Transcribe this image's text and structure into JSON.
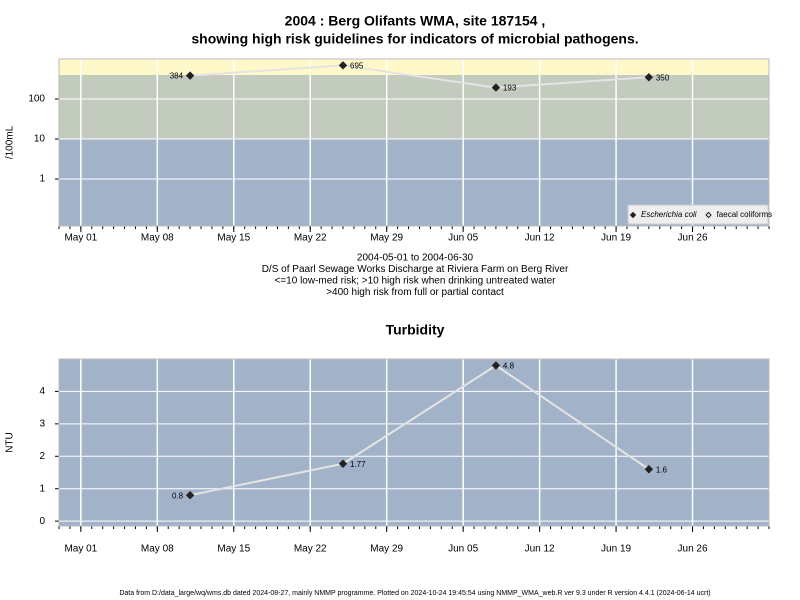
{
  "chart_data": [
    {
      "type": "line",
      "title": "2004 : Berg Olifants WMA, site 187154 ,",
      "subtitle": "showing high risk guidelines for indicators of microbial pathogens.",
      "y_label": "/100mL",
      "log_scale": true,
      "x": [
        "2004-05-11",
        "2004-05-25",
        "2004-06-08",
        "2004-06-22"
      ],
      "series": [
        {
          "name": "Escherichia coli",
          "color": "#222222",
          "marker": "filled",
          "values": [
            384,
            695,
            193,
            350
          ]
        },
        {
          "name": "faecal coliforms",
          "color": "#222222",
          "marker": "open",
          "values": [
            null,
            null,
            null,
            null
          ]
        }
      ],
      "line_color": "#e4e4e4",
      "xlim": [
        "2004-04-29",
        "2004-07-03"
      ],
      "xticks": [
        {
          "value": "2004-05-01",
          "label": "May 01"
        },
        {
          "value": "2004-05-08",
          "label": "May 08"
        },
        {
          "value": "2004-05-15",
          "label": "May 15"
        },
        {
          "value": "2004-05-22",
          "label": "May 22"
        },
        {
          "value": "2004-05-29",
          "label": "May 29"
        },
        {
          "value": "2004-06-05",
          "label": "Jun 05"
        },
        {
          "value": "2004-06-12",
          "label": "Jun 12"
        },
        {
          "value": "2004-06-19",
          "label": "Jun 19"
        },
        {
          "value": "2004-06-26",
          "label": "Jun 26"
        }
      ],
      "ylim": [
        0.067,
        1000
      ],
      "yticks": [
        1,
        10,
        100
      ],
      "thresholds": [
        10,
        400
      ],
      "band_colors": [
        "#a2b3c9",
        "#c3cbbf",
        "#fff8c8"
      ],
      "grid": true,
      "legend": "bottom right",
      "notes": [
        "2004-05-01 to 2004-06-30",
        "D/S of Paarl Sewage Works Discharge at Riviera Farm on Berg River",
        "<=10 low-med risk; >10 high risk when drinking untreated water",
        ">400 high risk from full or partial contact"
      ]
    },
    {
      "type": "line",
      "title": "Turbidity",
      "y_label": "NTU",
      "log_scale": false,
      "x": [
        "2004-05-11",
        "2004-05-25",
        "2004-06-08",
        "2004-06-22"
      ],
      "series": [
        {
          "name": "Turbidity",
          "color": "#222222",
          "marker": "filled",
          "values": [
            0.8,
            1.77,
            4.8,
            1.6
          ]
        }
      ],
      "line_color": "#e4e4e4",
      "xlim": [
        "2004-04-29",
        "2004-07-03"
      ],
      "xticks": [
        {
          "value": "2004-05-01",
          "label": "May 01"
        },
        {
          "value": "2004-05-08",
          "label": "May 08"
        },
        {
          "value": "2004-05-15",
          "label": "May 15"
        },
        {
          "value": "2004-05-22",
          "label": "May 22"
        },
        {
          "value": "2004-05-29",
          "label": "May 29"
        },
        {
          "value": "2004-06-05",
          "label": "Jun 05"
        },
        {
          "value": "2004-06-12",
          "label": "Jun 12"
        },
        {
          "value": "2004-06-19",
          "label": "Jun 19"
        },
        {
          "value": "2004-06-26",
          "label": "Jun 26"
        }
      ],
      "ylim": [
        -0.15,
        5
      ],
      "yticks": [
        0,
        1,
        2,
        3,
        4
      ],
      "background": "#a2b3c9",
      "grid": true
    }
  ],
  "footer": "Data from D:/data_large/wq/wms.db dated 2024-08-27, mainly NMMP programme. Plotted on 2024-10-24 19:45:54 using NMMP_WMA_web.R ver 9.3 under R version 4.4.1 (2024-06-14 ucrt)"
}
